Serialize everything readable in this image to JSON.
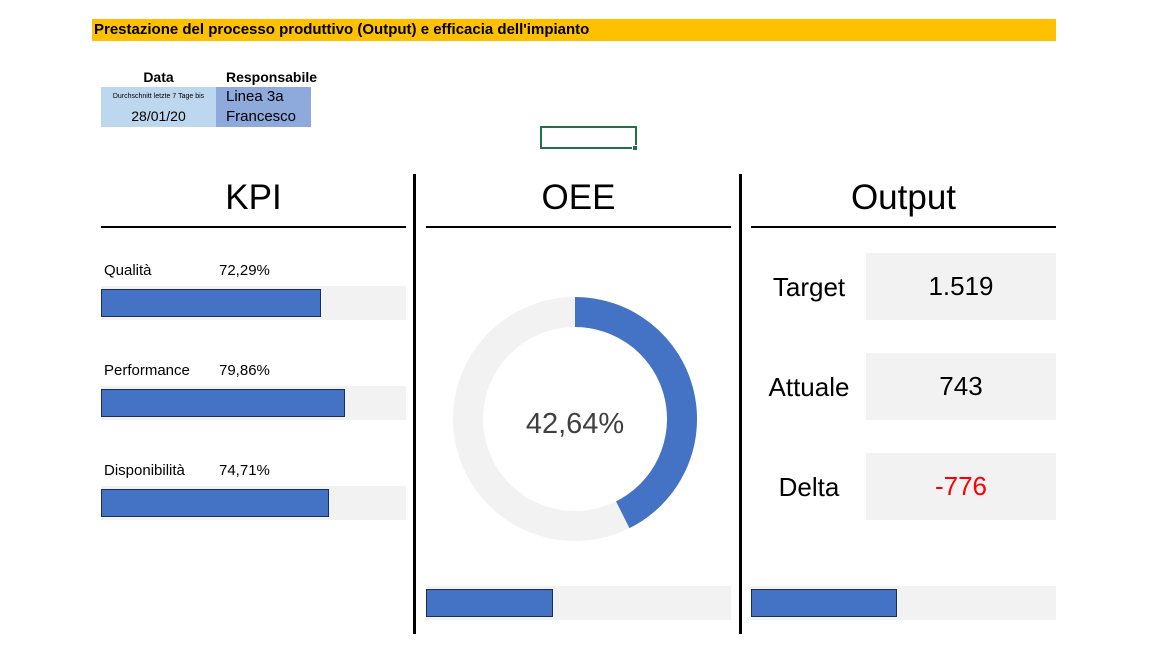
{
  "title": "Prestazione del processo produttivo (Output) e efficacia dell'impianto",
  "header": {
    "date_label": "Data",
    "resp_label": "Responsabile",
    "date_note": "Durchschnitt letzte 7 Tage bis",
    "date_value": "28/01/20",
    "line": "Linea 3a",
    "responsible": "Francesco"
  },
  "sections": {
    "kpi_title": "KPI",
    "oee_title": "OEE",
    "output_title": "Output"
  },
  "kpi": [
    {
      "label": "Qualità",
      "value": "72,29%",
      "fraction": 0.7229
    },
    {
      "label": "Performance",
      "value": "79,86%",
      "fraction": 0.7986
    },
    {
      "label": "Disponibilità",
      "value": "74,71%",
      "fraction": 0.7471
    }
  ],
  "oee": {
    "value_text": "42,64%",
    "fraction": 0.4264,
    "bar_fraction": 0.4264
  },
  "output": {
    "target_label": "Target",
    "target_value": "1.519",
    "actual_label": "Attuale",
    "actual_value": "743",
    "delta_label": "Delta",
    "delta_value": "-776",
    "bar_fraction": 0.4891
  },
  "colors": {
    "title_bar": "#FFC000",
    "bar": "#4472C4",
    "track": "#F2F2F2",
    "date_cell": "#BDD7EE",
    "resp_cell": "#8EA9DB",
    "delta_negative": "#FF0000",
    "selection": "#217346"
  }
}
